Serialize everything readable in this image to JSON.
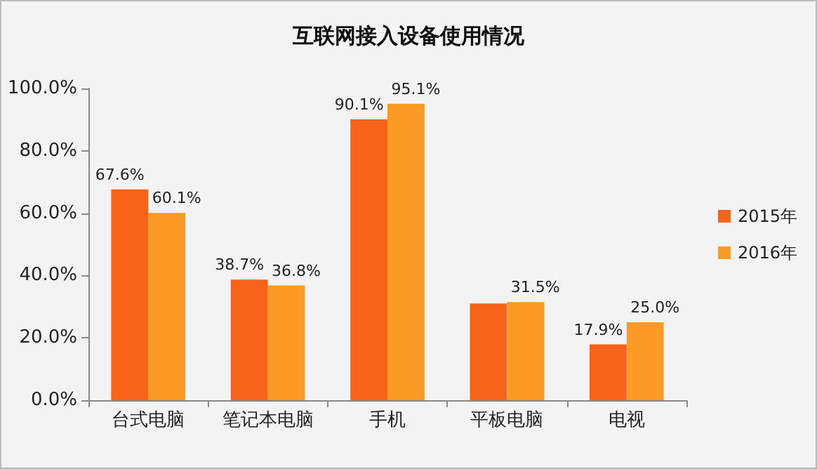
{
  "chart_data": {
    "type": "bar",
    "title": "互联网接入设备使用情况",
    "categories": [
      "台式电脑",
      "笔记本电脑",
      "手机",
      "平板电脑",
      "电视"
    ],
    "series": [
      {
        "name": "2015年",
        "color": "#f7631b",
        "values": [
          67.6,
          38.7,
          90.1,
          31.0,
          17.9
        ],
        "value_labels": [
          "67.6%",
          "38.7%",
          "90.1%",
          null,
          "17.9%"
        ]
      },
      {
        "name": "2016年",
        "color": "#fb9a24",
        "values": [
          60.1,
          36.8,
          95.1,
          31.5,
          25.0
        ],
        "value_labels": [
          "60.1%",
          "36.8%",
          "95.1%",
          "31.5%",
          "25.0%"
        ]
      }
    ],
    "ylim": [
      0,
      100
    ],
    "yticks": [
      {
        "value": 0,
        "label": "0.0%"
      },
      {
        "value": 20,
        "label": "20.0%"
      },
      {
        "value": 40,
        "label": "40.0%"
      },
      {
        "value": 60,
        "label": "60.0%"
      },
      {
        "value": 80,
        "label": "80.0%"
      },
      {
        "value": 100,
        "label": "100.0%"
      }
    ],
    "grid": false,
    "legend": "right"
  }
}
